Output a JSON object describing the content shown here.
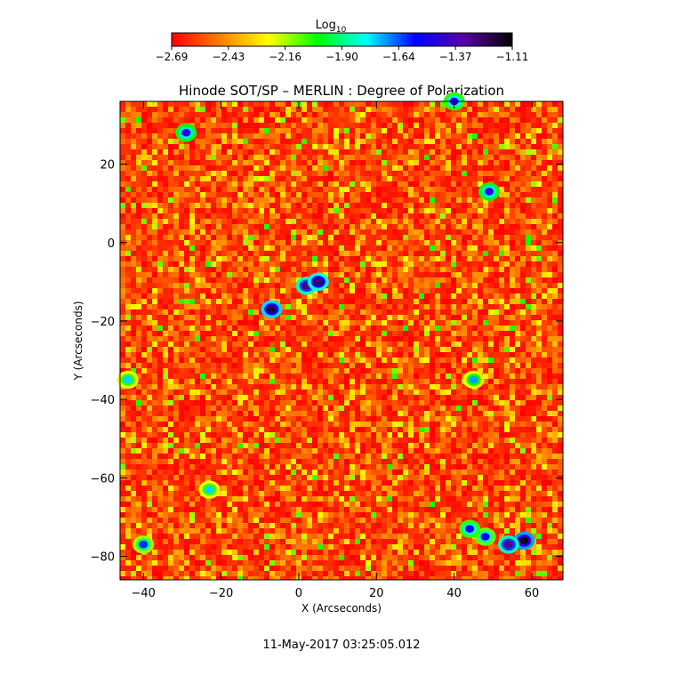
{
  "colorbar": {
    "label": "Log",
    "label_subscript": "10",
    "ticks": [
      "−2.69",
      "−2.43",
      "−2.16",
      "−1.90",
      "−1.64",
      "−1.37",
      "−1.11"
    ],
    "range": [
      -2.69,
      -1.11
    ],
    "colormap": [
      "#ff0000",
      "#ff8000",
      "#ffff00",
      "#00ff00",
      "#00ffff",
      "#0000ff",
      "#5a00a8",
      "#000000"
    ]
  },
  "chart_data": {
    "type": "heatmap",
    "title": "Hinode SOT/SP – MERLIN : Degree of Polarization",
    "xlabel": "X (Arcseconds)",
    "ylabel": "Y (Arcseconds)",
    "xlim": [
      -46,
      68
    ],
    "ylim": [
      -86,
      36
    ],
    "x_ticks": [
      -40,
      -20,
      0,
      20,
      40,
      60
    ],
    "y_ticks": [
      -80,
      -60,
      -40,
      -20,
      0,
      20
    ],
    "x_tick_labels": [
      "−40",
      "−20",
      "0",
      "20",
      "40",
      "60"
    ],
    "y_tick_labels": [
      "−80",
      "−60",
      "−40",
      "−20",
      "0",
      "20"
    ],
    "value_range_log10": [
      -2.69,
      -1.11
    ],
    "high_polarization_features": [
      {
        "x": -7,
        "y": -17,
        "level": -1.2
      },
      {
        "x": 2,
        "y": -11,
        "level": -1.3
      },
      {
        "x": 5,
        "y": -10,
        "level": -1.25
      },
      {
        "x": -29,
        "y": 28,
        "level": -1.45
      },
      {
        "x": 58,
        "y": -76,
        "level": -1.15
      },
      {
        "x": 54,
        "y": -77,
        "level": -1.3
      },
      {
        "x": 48,
        "y": -75,
        "level": -1.55
      },
      {
        "x": 44,
        "y": -73,
        "level": -1.5
      },
      {
        "x": 49,
        "y": 13,
        "level": -1.45
      },
      {
        "x": 40,
        "y": 36,
        "level": -1.5
      },
      {
        "x": -40,
        "y": -77,
        "level": -1.6
      },
      {
        "x": -23,
        "y": -63,
        "level": -1.75
      },
      {
        "x": 45,
        "y": -35,
        "level": -1.7
      },
      {
        "x": -44,
        "y": -35,
        "level": -1.75
      }
    ]
  },
  "timestamp": "11-May-2017 03:25:05.012"
}
